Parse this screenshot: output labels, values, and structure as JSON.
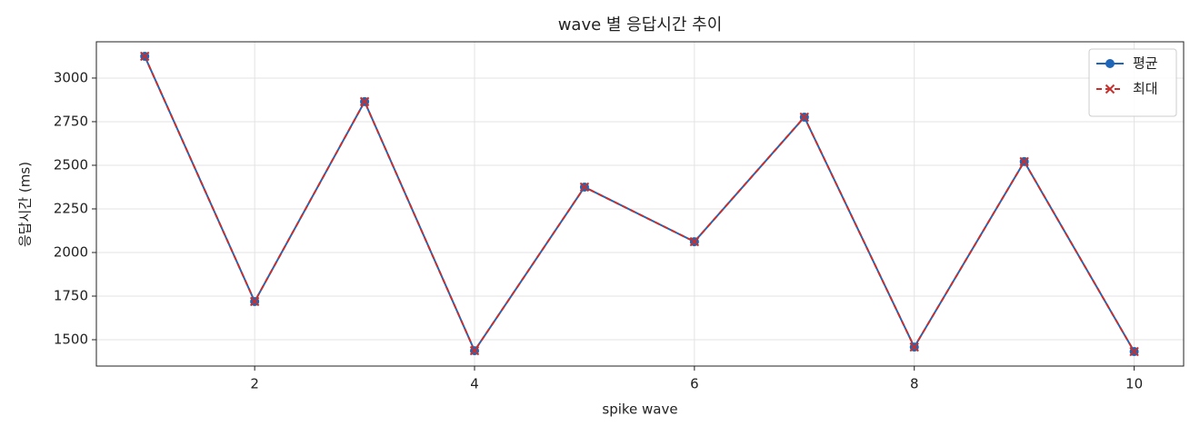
{
  "chart_data": {
    "type": "line",
    "title": "wave 별 응답시간 추이",
    "x_label": "spike wave",
    "y_label": "응답시간 (ms)",
    "x": [
      1,
      2,
      3,
      4,
      5,
      6,
      7,
      8,
      9,
      10
    ],
    "series": [
      {
        "name": "평균",
        "color": "#1f66b8",
        "marker": "circle",
        "dash": false,
        "values": [
          3125,
          1719,
          2865,
          1437,
          2375,
          2062,
          2776,
          1458,
          2521,
          1432
        ]
      },
      {
        "name": "최대",
        "color": "#c8302e",
        "marker": "x",
        "dash": true,
        "values": [
          3125,
          1719,
          2865,
          1437,
          2375,
          2062,
          2776,
          1458,
          2521,
          1432
        ]
      }
    ],
    "xlim": [
      0.56,
      10.45
    ],
    "ylim": [
      1349,
      3208
    ],
    "xticks": [
      2,
      4,
      6,
      8,
      10
    ],
    "yticks": [
      1500,
      1750,
      2000,
      2250,
      2500,
      2750,
      3000
    ],
    "grid": true,
    "legend": "upper right"
  }
}
